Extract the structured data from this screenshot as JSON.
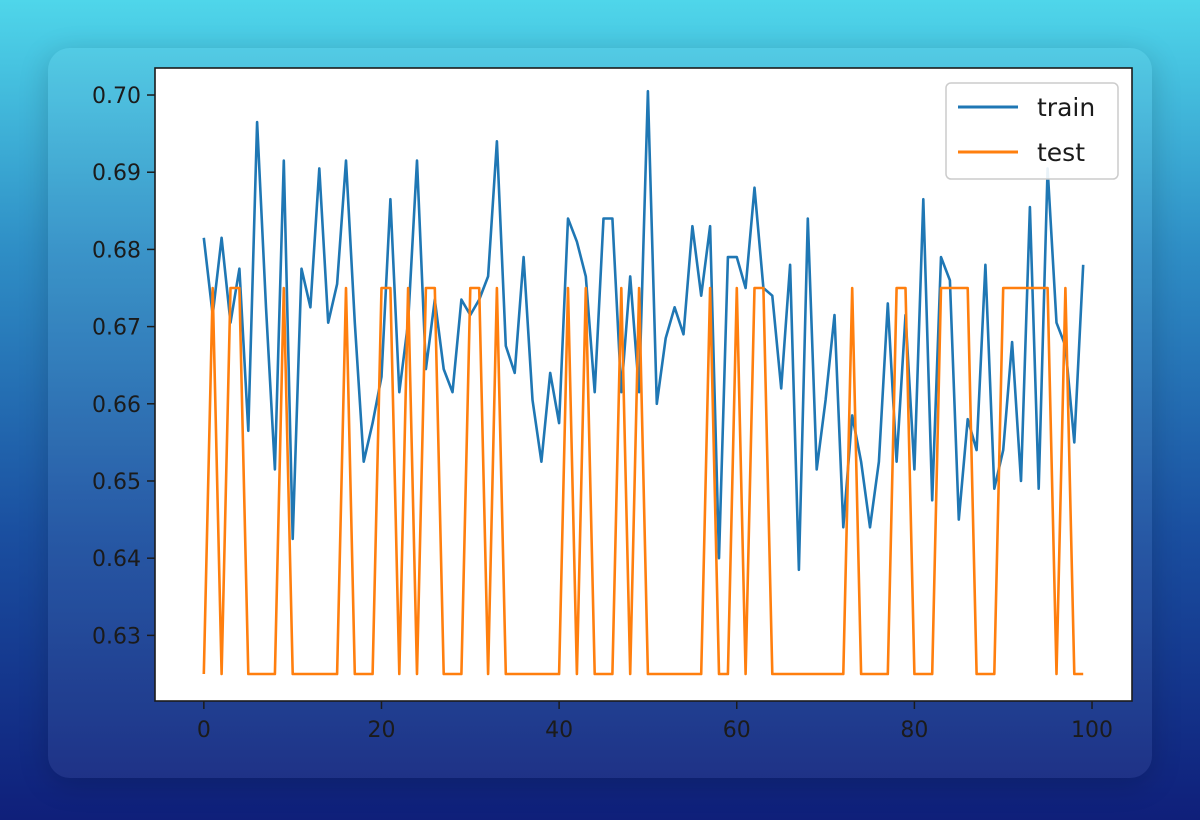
{
  "chart_data": {
    "type": "line",
    "title": "",
    "xlabel": "",
    "ylabel": "",
    "xlim": [
      -5.5,
      104.5
    ],
    "ylim": [
      0.6215,
      0.7035
    ],
    "x_ticks": [
      0,
      20,
      40,
      60,
      80,
      100
    ],
    "x_tick_labels": [
      "0",
      "20",
      "40",
      "60",
      "80",
      "100"
    ],
    "y_ticks": [
      0.63,
      0.64,
      0.65,
      0.66,
      0.67,
      0.68,
      0.69,
      0.7
    ],
    "y_tick_labels": [
      "0.63",
      "0.64",
      "0.65",
      "0.66",
      "0.67",
      "0.68",
      "0.69",
      "0.70"
    ],
    "grid": false,
    "legend": {
      "position": "top-right"
    },
    "series": [
      {
        "name": "train",
        "color": "#1f77b4",
        "x": [
          0,
          1,
          2,
          3,
          4,
          5,
          6,
          7,
          8,
          9,
          10,
          11,
          12,
          13,
          14,
          15,
          16,
          17,
          18,
          19,
          20,
          21,
          22,
          23,
          24,
          25,
          26,
          27,
          28,
          29,
          30,
          31,
          32,
          33,
          34,
          35,
          36,
          37,
          38,
          39,
          40,
          41,
          42,
          43,
          44,
          45,
          46,
          47,
          48,
          49,
          50,
          51,
          52,
          53,
          54,
          55,
          56,
          57,
          58,
          59,
          60,
          61,
          62,
          63,
          64,
          65,
          66,
          67,
          68,
          69,
          70,
          71,
          72,
          73,
          74,
          75,
          76,
          77,
          78,
          79,
          80,
          81,
          82,
          83,
          84,
          85,
          86,
          87,
          88,
          89,
          90,
          91,
          92,
          93,
          94,
          95,
          96,
          97,
          98,
          99
        ],
        "values": [
          0.6815,
          0.6715,
          0.6815,
          0.6705,
          0.6775,
          0.6565,
          0.6965,
          0.6725,
          0.6515,
          0.6915,
          0.6425,
          0.6775,
          0.6725,
          0.6905,
          0.6705,
          0.6755,
          0.6915,
          0.6705,
          0.6525,
          0.6575,
          0.6635,
          0.6865,
          0.6615,
          0.6705,
          0.6915,
          0.6645,
          0.6735,
          0.6645,
          0.6615,
          0.6735,
          0.6715,
          0.6735,
          0.6765,
          0.694,
          0.6675,
          0.664,
          0.679,
          0.6605,
          0.6525,
          0.664,
          0.6575,
          0.684,
          0.681,
          0.6765,
          0.6615,
          0.684,
          0.684,
          0.6615,
          0.6765,
          0.6615,
          0.7005,
          0.66,
          0.6685,
          0.6725,
          0.669,
          0.683,
          0.674,
          0.683,
          0.64,
          0.679,
          0.679,
          0.675,
          0.688,
          0.675,
          0.674,
          0.662,
          0.678,
          0.6385,
          0.684,
          0.6515,
          0.6605,
          0.6715,
          0.644,
          0.6585,
          0.6525,
          0.644,
          0.6525,
          0.673,
          0.6525,
          0.6715,
          0.6515,
          0.6865,
          0.6475,
          0.679,
          0.676,
          0.645,
          0.658,
          0.654,
          0.678,
          0.649,
          0.654,
          0.668,
          0.65,
          0.6855,
          0.649,
          0.6905,
          0.6705,
          0.6675,
          0.655,
          0.678
        ]
      },
      {
        "name": "test",
        "color": "#ff7f0e",
        "x": [
          0,
          1,
          2,
          3,
          4,
          5,
          6,
          7,
          8,
          9,
          10,
          11,
          12,
          13,
          14,
          15,
          16,
          17,
          18,
          19,
          20,
          21,
          22,
          23,
          24,
          25,
          26,
          27,
          28,
          29,
          30,
          31,
          32,
          33,
          34,
          35,
          36,
          37,
          38,
          39,
          40,
          41,
          42,
          43,
          44,
          45,
          46,
          47,
          48,
          49,
          50,
          51,
          52,
          53,
          54,
          55,
          56,
          57,
          58,
          59,
          60,
          61,
          62,
          63,
          64,
          65,
          66,
          67,
          68,
          69,
          70,
          71,
          72,
          73,
          74,
          75,
          76,
          77,
          78,
          79,
          80,
          81,
          82,
          83,
          84,
          85,
          86,
          87,
          88,
          89,
          90,
          91,
          92,
          93,
          94,
          95,
          96,
          97,
          98,
          99
        ],
        "values": [
          0.625,
          0.675,
          0.625,
          0.675,
          0.675,
          0.625,
          0.625,
          0.625,
          0.625,
          0.675,
          0.625,
          0.625,
          0.625,
          0.625,
          0.625,
          0.625,
          0.675,
          0.625,
          0.625,
          0.625,
          0.675,
          0.675,
          0.625,
          0.675,
          0.625,
          0.675,
          0.675,
          0.625,
          0.625,
          0.625,
          0.675,
          0.675,
          0.625,
          0.675,
          0.625,
          0.625,
          0.625,
          0.625,
          0.625,
          0.625,
          0.625,
          0.675,
          0.625,
          0.675,
          0.625,
          0.625,
          0.625,
          0.675,
          0.625,
          0.675,
          0.625,
          0.625,
          0.625,
          0.625,
          0.625,
          0.625,
          0.625,
          0.675,
          0.625,
          0.625,
          0.675,
          0.625,
          0.675,
          0.675,
          0.625,
          0.625,
          0.625,
          0.625,
          0.625,
          0.625,
          0.625,
          0.625,
          0.625,
          0.675,
          0.625,
          0.625,
          0.625,
          0.625,
          0.675,
          0.675,
          0.625,
          0.625,
          0.625,
          0.675,
          0.675,
          0.675,
          0.675,
          0.625,
          0.625,
          0.625,
          0.675,
          0.675,
          0.675,
          0.675,
          0.675,
          0.675,
          0.625,
          0.675,
          0.625,
          0.625
        ]
      }
    ]
  }
}
